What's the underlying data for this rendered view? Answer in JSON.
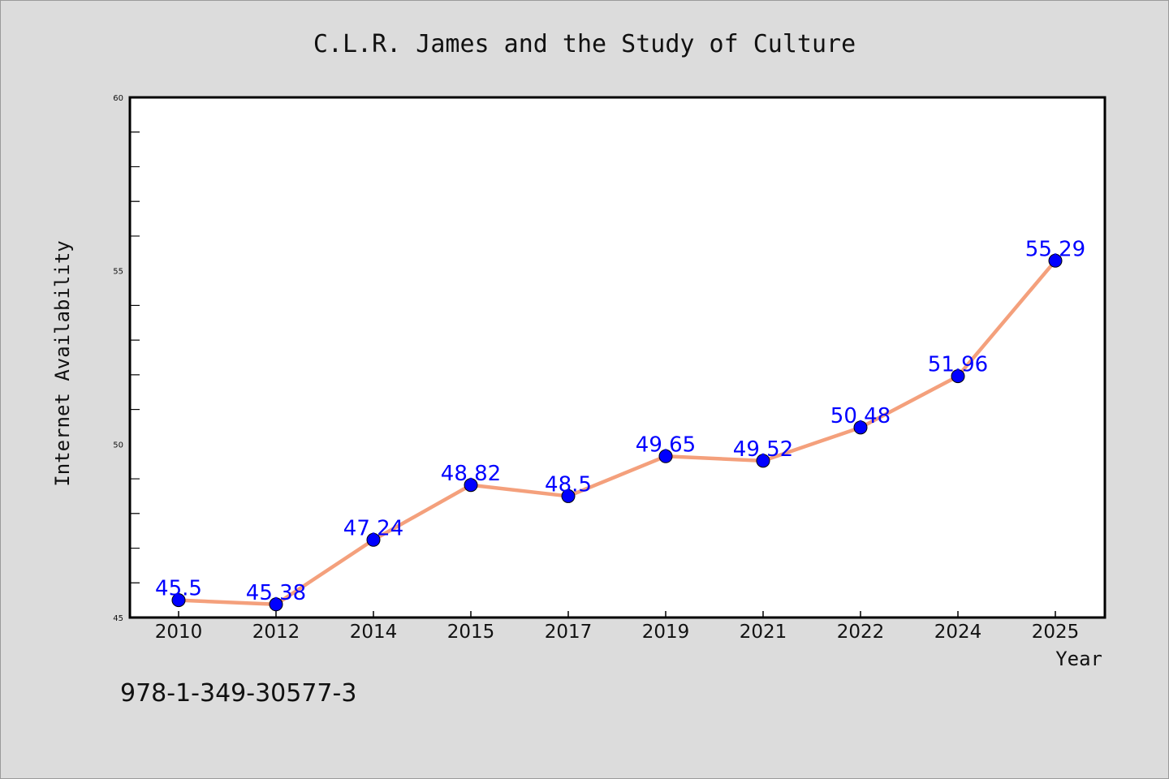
{
  "chart_data": {
    "type": "line",
    "title": "C.L.R. James and the Study of Culture",
    "xlabel": "Year",
    "ylabel": "Internet Availability",
    "categories": [
      "2010",
      "2012",
      "2014",
      "2015",
      "2017",
      "2019",
      "2021",
      "2022",
      "2024",
      "2025"
    ],
    "series": [
      {
        "values": [
          45.5,
          45.38,
          47.24,
          48.82,
          48.5,
          49.65,
          49.52,
          50.48,
          51.96,
          55.29
        ],
        "line_color": "#f4a07c",
        "marker_color": "#0000ff"
      }
    ],
    "data_labels": [
      "45.5",
      "45.38",
      "47.24",
      "48.82",
      "48.5",
      "49.65",
      "49.52",
      "50.48",
      "51.96",
      "55.29"
    ],
    "label_color": "#0000ff",
    "ylim": [
      45,
      60
    ],
    "yticks": [
      45,
      50,
      55,
      60
    ],
    "ytick_labels": [
      "45",
      "50",
      "55",
      "60"
    ],
    "grid": false,
    "legend": "none"
  },
  "footnote": "978-1-349-30577-3",
  "colors": {
    "background": "#dcdcdc",
    "plot_background": "#ffffff",
    "axis": "#000000"
  }
}
